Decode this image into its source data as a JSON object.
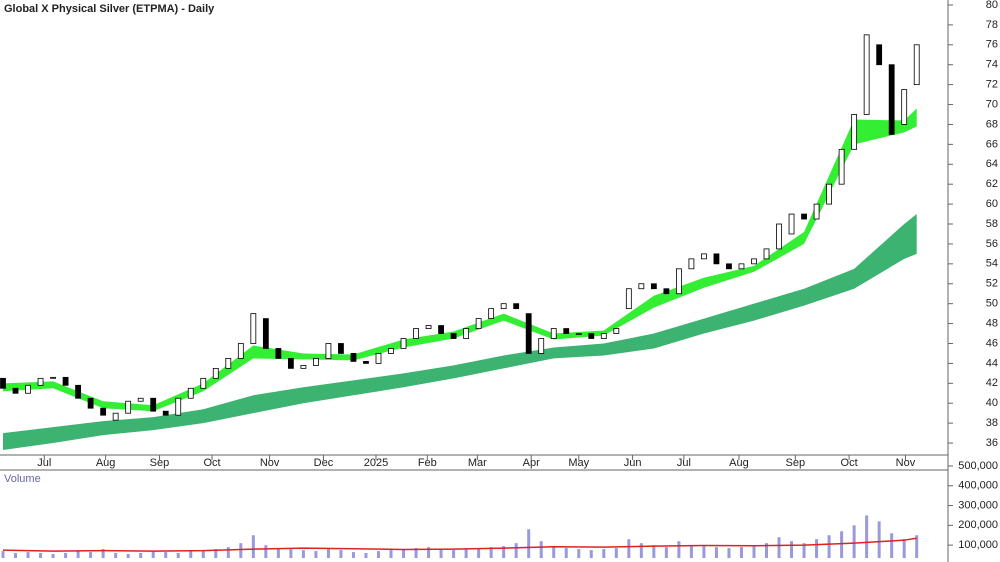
{
  "chart_data": {
    "type": "candlestick",
    "title": "Global X Physical Silver (ETPMA) - Daily",
    "volume_label": "Volume",
    "xlim": [
      0,
      75.5
    ],
    "xticks": [
      {
        "value": 3.3,
        "label": "Jul"
      },
      {
        "value": 8.2,
        "label": "Aug"
      },
      {
        "value": 12.5,
        "label": "Sep"
      },
      {
        "value": 16.7,
        "label": "Oct"
      },
      {
        "value": 21.3,
        "label": "Nov"
      },
      {
        "value": 25.6,
        "label": "Dec"
      },
      {
        "value": 29.8,
        "label": "2025"
      },
      {
        "value": 33.9,
        "label": "Feb"
      },
      {
        "value": 37.9,
        "label": "Mar"
      },
      {
        "value": 42.2,
        "label": "Apr"
      },
      {
        "value": 46.0,
        "label": "May"
      },
      {
        "value": 50.3,
        "label": "Jun"
      },
      {
        "value": 54.4,
        "label": "Jul"
      },
      {
        "value": 58.8,
        "label": "Aug"
      },
      {
        "value": 63.3,
        "label": "Sep"
      },
      {
        "value": 67.6,
        "label": "Oct"
      },
      {
        "value": 72.1,
        "label": "Nov"
      }
    ],
    "ylim": [
      34.8,
      80.5
    ],
    "yticks": [
      36,
      38,
      40,
      42,
      44,
      46,
      48,
      50,
      52,
      54,
      56,
      58,
      60,
      62,
      64,
      66,
      68,
      70,
      72,
      74,
      76,
      78,
      80
    ],
    "open": [
      42.5,
      41.5,
      41,
      41.8,
      42.5,
      42.6,
      41.8,
      40.5,
      39.5,
      38.3,
      39,
      40.2,
      40.5,
      39.2,
      38.8,
      40.5,
      41.5,
      42.5,
      43.5,
      44.5,
      46,
      48.5,
      45.5,
      44.5,
      43.5,
      43.8,
      44.5,
      46,
      45,
      44.2,
      44,
      45,
      45.5,
      46.5,
      47.5,
      47.8,
      47,
      46.5,
      47.5,
      48.5,
      49.5,
      50,
      49,
      45,
      46.5,
      47.5,
      47,
      47,
      46.5,
      47,
      49.5,
      51.5,
      52,
      51.5,
      51,
      53.5,
      54.5,
      55,
      54,
      53.5,
      54,
      54.5,
      55.5,
      57,
      59,
      58.5,
      60,
      62,
      65.5,
      69,
      76,
      74,
      68,
      72
    ],
    "close": [
      41.5,
      41,
      41.8,
      42.5,
      42.6,
      41.8,
      40.5,
      39.5,
      38.8,
      39,
      40.2,
      40.5,
      39.2,
      38.8,
      40.5,
      41.5,
      42.5,
      43.5,
      44.5,
      46,
      49,
      45.5,
      44.5,
      43.5,
      43.8,
      44.5,
      46,
      45,
      44.2,
      44,
      45,
      45.5,
      46.5,
      47.5,
      47.8,
      47,
      46.5,
      47.5,
      48.5,
      49.5,
      50,
      49.5,
      45,
      46.5,
      47.5,
      47,
      47,
      46.5,
      47,
      47.5,
      51.5,
      52,
      51.5,
      51,
      53.5,
      54.5,
      55,
      54,
      53.5,
      54,
      54.5,
      55.5,
      58,
      59,
      58.5,
      60,
      62,
      65.5,
      69,
      77,
      74,
      67,
      71.5,
      76
    ],
    "band_x": [
      0,
      4,
      8,
      12,
      16,
      20,
      24,
      28,
      32,
      36,
      40,
      44,
      48,
      52,
      56,
      60,
      64,
      68,
      72,
      73
    ],
    "bands": [
      {
        "color": "#3cb371",
        "lower": [
          35.3,
          36.0,
          36.8,
          37.3,
          38.0,
          39.0,
          40.0,
          40.8,
          41.6,
          42.5,
          43.5,
          44.5,
          44.8,
          45.5,
          47.0,
          48.3,
          49.8,
          51.5,
          54.5,
          55.0
        ],
        "upper": [
          37.0,
          37.6,
          38.2,
          38.6,
          39.4,
          40.8,
          41.6,
          42.3,
          43.0,
          43.8,
          44.8,
          45.6,
          46.0,
          47.0,
          48.5,
          50.0,
          51.5,
          53.5,
          58.0,
          59.0
        ]
      },
      {
        "color": "#33ee33",
        "lower": [
          41.2,
          41.5,
          39.5,
          39.2,
          41.2,
          44.5,
          44.4,
          44.3,
          45.6,
          46.5,
          48.3,
          46.4,
          46.8,
          49.6,
          51.6,
          53.2,
          56.0,
          66.0,
          67.2,
          67.8
        ],
        "upper": [
          42.0,
          42.2,
          40.2,
          39.8,
          42.0,
          45.8,
          45.0,
          44.9,
          46.4,
          47.2,
          49.0,
          47.0,
          47.3,
          50.8,
          52.6,
          53.8,
          57.2,
          68.5,
          68.4,
          69.6
        ]
      }
    ],
    "volume": [
      70000,
      60000,
      65000,
      60000,
      55000,
      60000,
      70000,
      65000,
      80000,
      60000,
      55000,
      60000,
      70000,
      65000,
      60000,
      70000,
      75000,
      80000,
      90000,
      110000,
      150000,
      100000,
      85000,
      80000,
      75000,
      70000,
      80000,
      75000,
      65000,
      60000,
      70000,
      75000,
      80000,
      85000,
      90000,
      80000,
      75000,
      80000,
      85000,
      90000,
      95000,
      110000,
      180000,
      120000,
      90000,
      85000,
      80000,
      75000,
      80000,
      85000,
      130000,
      110000,
      100000,
      90000,
      120000,
      100000,
      95000,
      90000,
      85000,
      90000,
      95000,
      110000,
      140000,
      120000,
      110000,
      130000,
      150000,
      170000,
      200000,
      250000,
      220000,
      160000,
      130000,
      150000
    ],
    "volume_color": "#9999dd",
    "volume_ma": [
      75000,
      70000,
      72000,
      70000,
      72000,
      80000,
      85000,
      82000,
      78000,
      80000,
      85000,
      92000,
      90000,
      95000,
      98000,
      97000,
      100000,
      110000,
      125000,
      135000
    ],
    "volume_ma_color": "#dd2222",
    "vlim": [
      35000,
      520000
    ],
    "vticks": [
      {
        "value": 100000,
        "label": "100,000"
      },
      {
        "value": 200000,
        "label": "200,000"
      },
      {
        "value": 300000,
        "label": "300,000"
      },
      {
        "value": 400000,
        "label": "400,000"
      },
      {
        "value": 500000,
        "label": "500,000"
      }
    ]
  }
}
